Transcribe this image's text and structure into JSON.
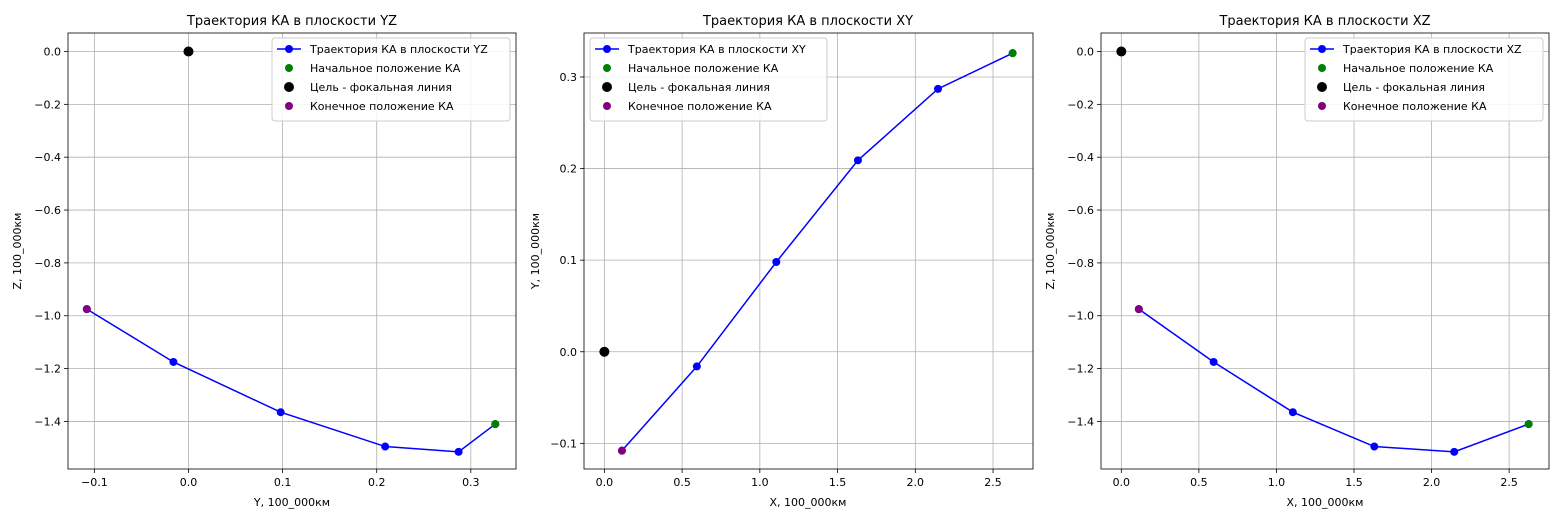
{
  "figure": {
    "background": "#ffffff"
  },
  "chart_data": [
    {
      "type": "line",
      "title": "Траектория КА в плоскости YZ",
      "xlabel": "Y, 100_000км",
      "ylabel": "Z, 100_000км",
      "xlim": [
        -0.128,
        0.348
      ],
      "ylim": [
        -1.58,
        0.07
      ],
      "xticks": [
        -0.1,
        0.0,
        0.1,
        0.2,
        0.3
      ],
      "xtick_labels": [
        "−0.1",
        "0.0",
        "0.1",
        "0.2",
        "0.3"
      ],
      "yticks": [
        -1.4,
        -1.2,
        -1.0,
        -0.8,
        -0.6,
        -0.4,
        -0.2,
        0.0
      ],
      "ytick_labels": [
        "−1.4",
        "−1.2",
        "−1.0",
        "−0.8",
        "−0.6",
        "−0.4",
        "−0.2",
        "0.0"
      ],
      "grid": true,
      "legend_position": "top-right",
      "series": [
        {
          "name": "Траектория КА в плоскости YZ",
          "kind": "line-marker",
          "color": "#0000ff",
          "x": [
            0.326,
            0.287,
            0.209,
            0.098,
            -0.016,
            -0.108
          ],
          "y": [
            -1.41,
            -1.515,
            -1.495,
            -1.365,
            -1.175,
            -0.975
          ]
        },
        {
          "name": "Начальное положение КА",
          "kind": "point",
          "color": "#008000",
          "x": [
            0.326
          ],
          "y": [
            -1.41
          ]
        },
        {
          "name": "Цель - фокальная линия",
          "kind": "point-large",
          "color": "#000000",
          "x": [
            0.0
          ],
          "y": [
            0.0
          ]
        },
        {
          "name": "Конечное положение КА",
          "kind": "point",
          "color": "#800080",
          "x": [
            -0.108
          ],
          "y": [
            -0.975
          ]
        }
      ]
    },
    {
      "type": "line",
      "title": "Траектория КА в плоскости XY",
      "xlabel": "X, 100_000км",
      "ylabel": "Y, 100_000км",
      "xlim": [
        -0.131,
        2.757
      ],
      "ylim": [
        -0.128,
        0.348
      ],
      "xticks": [
        0.0,
        0.5,
        1.0,
        1.5,
        2.0,
        2.5
      ],
      "xtick_labels": [
        "0.0",
        "0.5",
        "1.0",
        "1.5",
        "2.0",
        "2.5"
      ],
      "yticks": [
        -0.1,
        0.0,
        0.1,
        0.2,
        0.3
      ],
      "ytick_labels": [
        "−0.1",
        "0.0",
        "0.1",
        "0.2",
        "0.3"
      ],
      "grid": true,
      "legend_position": "top-left",
      "series": [
        {
          "name": "Траектория КА в плоскости XY",
          "kind": "line-marker",
          "color": "#0000ff",
          "x": [
            2.626,
            2.146,
            1.631,
            1.106,
            0.595,
            0.113
          ],
          "y": [
            0.326,
            0.287,
            0.209,
            0.098,
            -0.016,
            -0.108
          ]
        },
        {
          "name": "Начальное положение КА",
          "kind": "point",
          "color": "#008000",
          "x": [
            2.626
          ],
          "y": [
            0.326
          ]
        },
        {
          "name": "Цель - фокальная линия",
          "kind": "point-large",
          "color": "#000000",
          "x": [
            0.0
          ],
          "y": [
            0.0
          ]
        },
        {
          "name": "Конечное положение КА",
          "kind": "point",
          "color": "#800080",
          "x": [
            0.113
          ],
          "y": [
            -0.108
          ]
        }
      ]
    },
    {
      "type": "line",
      "title": "Траектория КА в плоскости XZ",
      "xlabel": "X, 100_000км",
      "ylabel": "Z, 100_000км",
      "xlim": [
        -0.131,
        2.757
      ],
      "ylim": [
        -1.58,
        0.07
      ],
      "xticks": [
        0.0,
        0.5,
        1.0,
        1.5,
        2.0,
        2.5
      ],
      "xtick_labels": [
        "0.0",
        "0.5",
        "1.0",
        "1.5",
        "2.0",
        "2.5"
      ],
      "yticks": [
        -1.4,
        -1.2,
        -1.0,
        -0.8,
        -0.6,
        -0.4,
        -0.2,
        0.0
      ],
      "ytick_labels": [
        "−1.4",
        "−1.2",
        "−1.0",
        "−0.8",
        "−0.6",
        "−0.4",
        "−0.2",
        "0.0"
      ],
      "grid": true,
      "legend_position": "top-right",
      "series": [
        {
          "name": "Траектория КА в плоскости XZ",
          "kind": "line-marker",
          "color": "#0000ff",
          "x": [
            2.626,
            2.146,
            1.631,
            1.106,
            0.595,
            0.113
          ],
          "y": [
            -1.41,
            -1.515,
            -1.495,
            -1.365,
            -1.175,
            -0.975
          ]
        },
        {
          "name": "Начальное положение КА",
          "kind": "point",
          "color": "#008000",
          "x": [
            2.626
          ],
          "y": [
            -1.41
          ]
        },
        {
          "name": "Цель - фокальная линия",
          "kind": "point-large",
          "color": "#000000",
          "x": [
            0.0
          ],
          "y": [
            0.0
          ]
        },
        {
          "name": "Конечное положение КА",
          "kind": "point",
          "color": "#800080",
          "x": [
            0.113
          ],
          "y": [
            -0.975
          ]
        }
      ]
    }
  ]
}
